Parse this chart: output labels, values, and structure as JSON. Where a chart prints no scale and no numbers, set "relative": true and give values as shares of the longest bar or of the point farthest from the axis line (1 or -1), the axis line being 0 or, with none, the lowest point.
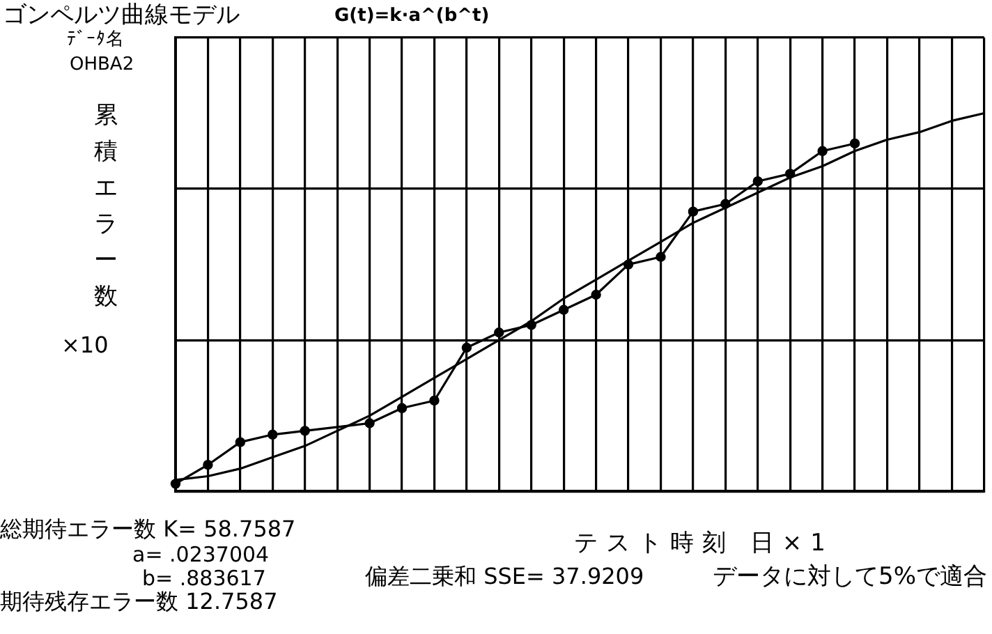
{
  "chart_data": {
    "type": "line",
    "title": "ゴンペルツ曲線モデル",
    "subtitle": "G(t)=k·a^(b^t)",
    "xlabel": "テスト時刻 日×1",
    "ylabel": "累積エラー数",
    "annotations": [
      "ﾃﾞｰﾀ名",
      "OHBA2",
      "×10",
      "総期待エラー数 K= 58.7587",
      "a= .0237004",
      "b= .883617",
      "期待残存エラー数 12.7587",
      "偏差二乗和 SSE= 37.9209",
      "データに対して5%で適合"
    ],
    "categories": [
      null,
      null,
      null,
      null,
      null,
      null,
      null,
      null,
      null,
      null,
      null,
      null,
      null,
      null,
      null,
      null,
      null,
      null,
      null,
      null,
      null,
      null,
      null,
      null,
      null,
      null
    ],
    "relative": true,
    "grid": true,
    "legend": false,
    "line_style": "solid",
    "series": [
      {
        "color": "#000000",
        "marker": "circle",
        "values": [
          0.02,
          0.07,
          0.13,
          0.15,
          0.16,
          null,
          0.18,
          0.22,
          0.24,
          0.38,
          0.42,
          0.44,
          0.48,
          0.52,
          0.6,
          0.62,
          0.74,
          0.76,
          0.82,
          0.84,
          0.9,
          0.92,
          null,
          null,
          null,
          null
        ]
      },
      {
        "color": "#000000",
        "marker": "none",
        "values": [
          0.03,
          0.04,
          0.06,
          0.09,
          0.12,
          0.16,
          0.2,
          0.25,
          0.3,
          0.35,
          0.4,
          0.45,
          0.51,
          0.56,
          0.61,
          0.66,
          0.71,
          0.75,
          0.79,
          0.83,
          0.86,
          0.9,
          0.93,
          0.95,
          0.98,
          1
        ]
      }
    ]
  }
}
